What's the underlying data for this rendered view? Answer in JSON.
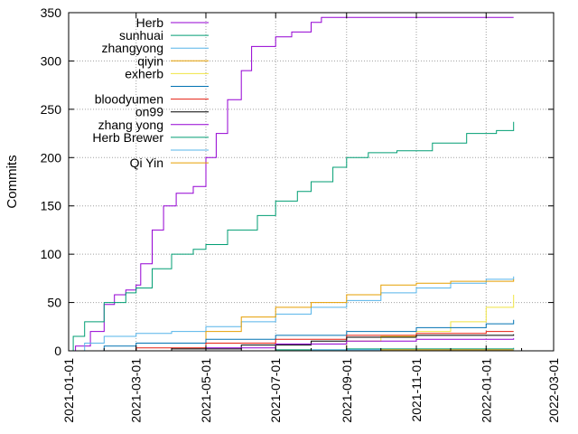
{
  "chart_data": {
    "type": "line",
    "title": "",
    "xlabel": "",
    "ylabel": "Commits",
    "xlim": [
      "2021-01-01",
      "2022-03-01"
    ],
    "ylim": [
      0,
      350
    ],
    "x_ticks": [
      "2021-01-01",
      "2021-03-01",
      "2021-05-01",
      "2021-07-01",
      "2021-09-01",
      "2021-11-01",
      "2022-01-01",
      "2022-03-01"
    ],
    "y_ticks": [
      0,
      50,
      100,
      150,
      200,
      250,
      300,
      350
    ],
    "grid": true,
    "legend_position": "top-left",
    "series": [
      {
        "name": "Herb",
        "color": "#9400d3",
        "points": [
          [
            "2021-01-01",
            0
          ],
          [
            "2021-01-07",
            5
          ],
          [
            "2021-01-20",
            20
          ],
          [
            "2021-02-01",
            48
          ],
          [
            "2021-02-10",
            58
          ],
          [
            "2021-02-20",
            63
          ],
          [
            "2021-03-01",
            68
          ],
          [
            "2021-03-05",
            90
          ],
          [
            "2021-03-15",
            125
          ],
          [
            "2021-03-25",
            150
          ],
          [
            "2021-04-05",
            163
          ],
          [
            "2021-04-20",
            170
          ],
          [
            "2021-05-01",
            200
          ],
          [
            "2021-05-10",
            225
          ],
          [
            "2021-05-20",
            260
          ],
          [
            "2021-06-01",
            290
          ],
          [
            "2021-06-10",
            315
          ],
          [
            "2021-07-01",
            325
          ],
          [
            "2021-07-15",
            330
          ],
          [
            "2021-08-01",
            340
          ],
          [
            "2021-08-10",
            345
          ],
          [
            "2022-01-25",
            345
          ]
        ]
      },
      {
        "name": "sunhuai",
        "color": "#009e73",
        "points": [
          [
            "2021-01-01",
            0
          ],
          [
            "2021-01-05",
            15
          ],
          [
            "2021-01-15",
            30
          ],
          [
            "2021-02-01",
            50
          ],
          [
            "2021-02-20",
            60
          ],
          [
            "2021-03-01",
            65
          ],
          [
            "2021-03-15",
            85
          ],
          [
            "2021-04-01",
            100
          ],
          [
            "2021-04-20",
            105
          ],
          [
            "2021-05-01",
            110
          ],
          [
            "2021-05-20",
            125
          ],
          [
            "2021-06-15",
            140
          ],
          [
            "2021-07-01",
            155
          ],
          [
            "2021-07-20",
            165
          ],
          [
            "2021-08-01",
            175
          ],
          [
            "2021-08-20",
            190
          ],
          [
            "2021-09-01",
            200
          ],
          [
            "2021-09-20",
            205
          ],
          [
            "2021-10-15",
            207
          ],
          [
            "2021-11-15",
            215
          ],
          [
            "2021-12-15",
            225
          ],
          [
            "2022-01-10",
            228
          ],
          [
            "2022-01-25",
            237
          ]
        ]
      },
      {
        "name": "zhangyong",
        "color": "#56b4e9",
        "points": [
          [
            "2021-01-01",
            0
          ],
          [
            "2021-01-15",
            8
          ],
          [
            "2021-02-01",
            15
          ],
          [
            "2021-03-01",
            18
          ],
          [
            "2021-04-01",
            20
          ],
          [
            "2021-05-01",
            25
          ],
          [
            "2021-06-01",
            30
          ],
          [
            "2021-07-01",
            38
          ],
          [
            "2021-08-01",
            45
          ],
          [
            "2021-09-01",
            52
          ],
          [
            "2021-10-01",
            60
          ],
          [
            "2021-11-01",
            65
          ],
          [
            "2021-12-01",
            70
          ],
          [
            "2022-01-01",
            74
          ],
          [
            "2022-01-25",
            77
          ]
        ]
      },
      {
        "name": "qiyin",
        "color": "#e69f00",
        "points": [
          [
            "2021-01-01",
            0
          ],
          [
            "2021-04-25",
            0
          ],
          [
            "2021-05-01",
            20
          ],
          [
            "2021-06-01",
            35
          ],
          [
            "2021-07-01",
            45
          ],
          [
            "2021-08-01",
            50
          ],
          [
            "2021-09-01",
            58
          ],
          [
            "2021-10-01",
            68
          ],
          [
            "2021-11-01",
            70
          ],
          [
            "2021-12-01",
            72
          ],
          [
            "2022-01-25",
            74
          ]
        ]
      },
      {
        "name": "exherb",
        "color": "#f0e442",
        "points": [
          [
            "2021-01-01",
            0
          ],
          [
            "2021-08-25",
            0
          ],
          [
            "2021-09-01",
            10
          ],
          [
            "2021-10-01",
            15
          ],
          [
            "2021-11-01",
            20
          ],
          [
            "2021-12-01",
            30
          ],
          [
            "2022-01-01",
            45
          ],
          [
            "2022-01-25",
            58
          ]
        ]
      },
      {
        "name": "",
        "color": "#0072b2",
        "points": [
          [
            "2021-01-01",
            0
          ],
          [
            "2021-02-01",
            5
          ],
          [
            "2021-03-01",
            8
          ],
          [
            "2021-05-01",
            12
          ],
          [
            "2021-07-01",
            16
          ],
          [
            "2021-09-01",
            20
          ],
          [
            "2021-11-01",
            24
          ],
          [
            "2022-01-01",
            28
          ],
          [
            "2022-01-25",
            32
          ]
        ]
      },
      {
        "name": "bloodyumen",
        "color": "#e51e10",
        "points": [
          [
            "2021-01-01",
            0
          ],
          [
            "2021-03-01",
            3
          ],
          [
            "2021-05-01",
            8
          ],
          [
            "2021-07-01",
            12
          ],
          [
            "2021-09-01",
            16
          ],
          [
            "2021-11-01",
            18
          ],
          [
            "2022-01-01",
            20
          ],
          [
            "2022-01-25",
            20
          ]
        ]
      },
      {
        "name": "on99",
        "color": "#000000",
        "points": [
          [
            "2021-01-01",
            0
          ],
          [
            "2021-04-01",
            2
          ],
          [
            "2021-06-01",
            6
          ],
          [
            "2021-08-01",
            10
          ],
          [
            "2021-09-01",
            14
          ],
          [
            "2021-11-01",
            16
          ],
          [
            "2022-01-25",
            17
          ]
        ]
      },
      {
        "name": "zhang yong",
        "color": "#9400d3",
        "points": [
          [
            "2021-01-01",
            0
          ],
          [
            "2021-05-01",
            3
          ],
          [
            "2021-07-01",
            7
          ],
          [
            "2021-09-01",
            10
          ],
          [
            "2021-11-01",
            12
          ],
          [
            "2022-01-25",
            13
          ]
        ]
      },
      {
        "name": "Herb Brewer",
        "color": "#009e73",
        "points": [
          [
            "2021-01-01",
            0
          ],
          [
            "2021-07-01",
            1
          ],
          [
            "2021-09-01",
            2
          ],
          [
            "2022-01-25",
            3
          ]
        ]
      },
      {
        "name": "",
        "color": "#56b4e9",
        "points": [
          [
            "2021-01-01",
            0
          ],
          [
            "2021-08-01",
            1
          ],
          [
            "2022-01-25",
            2
          ]
        ]
      },
      {
        "name": "Qi Yin",
        "color": "#e69f00",
        "points": [
          [
            "2021-01-01",
            0
          ],
          [
            "2021-10-01",
            1
          ],
          [
            "2022-01-25",
            1
          ]
        ]
      }
    ]
  }
}
